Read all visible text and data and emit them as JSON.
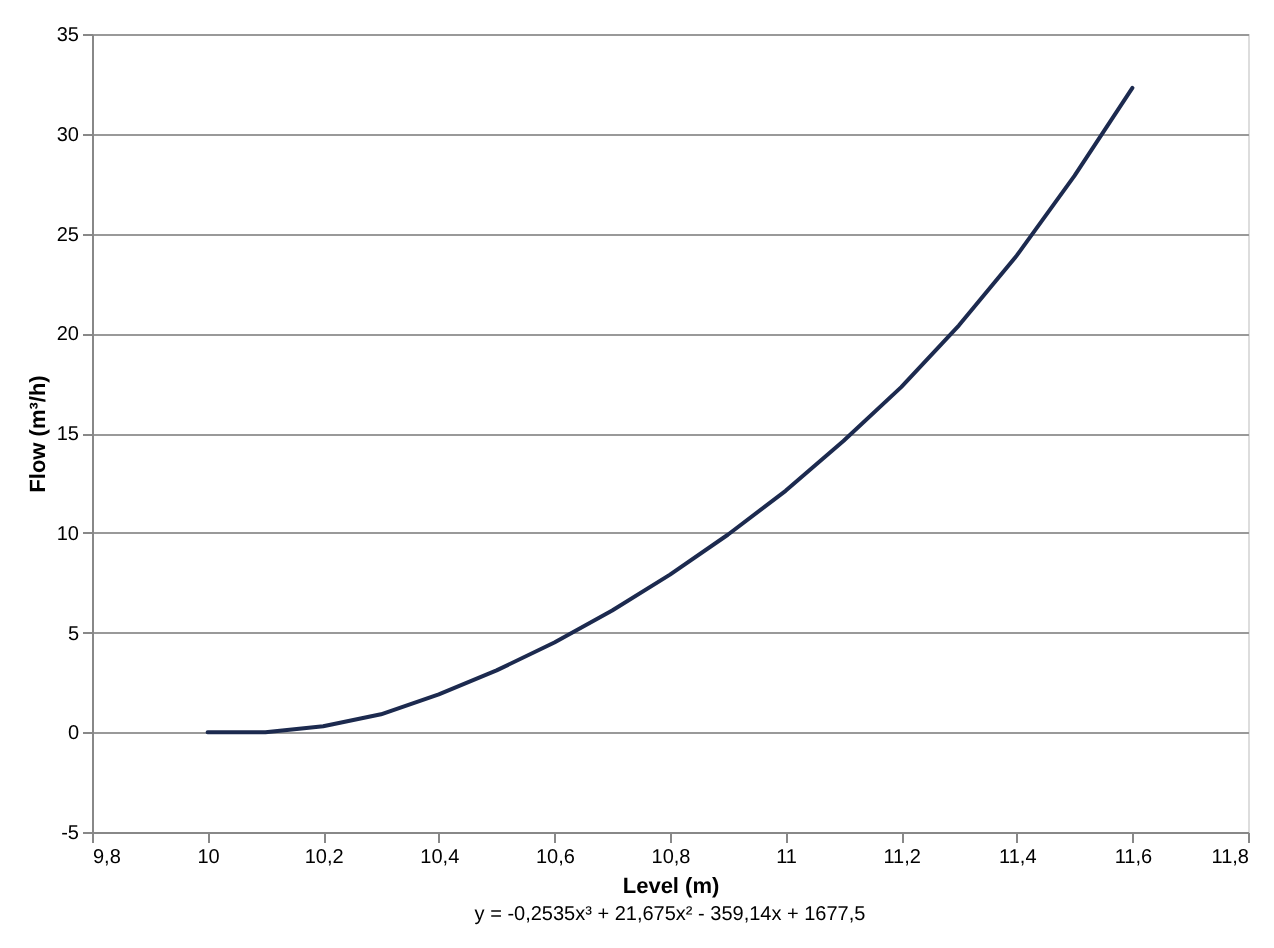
{
  "chart_data": {
    "type": "line",
    "xlabel": "Level (m)",
    "ylabel": "Flow (m³/h)",
    "annotations": [
      "y = -0,2535x³ + 21,675x² - 359,14x + 1677,5"
    ],
    "x": [
      10,
      10.1,
      10.2,
      10.3,
      10.4,
      10.5,
      10.6,
      10.7,
      10.8,
      10.9,
      11,
      11.1,
      11.2,
      11.3,
      11.4,
      11.5,
      11.6
    ],
    "series": [
      {
        "color": "#1c2a4f",
        "values": [
          0,
          0,
          0.3,
          0.9,
          1.9,
          3.1,
          4.5,
          6.1,
          7.9,
          9.9,
          12.1,
          14.6,
          17.3,
          20.4,
          23.9,
          27.9,
          32.3
        ]
      }
    ],
    "xlim": [
      9.8,
      11.8
    ],
    "xticks": [
      {
        "value": 9.8,
        "label": "9,8"
      },
      10,
      {
        "value": 10.2,
        "label": "10,2"
      },
      {
        "value": 10.4,
        "label": "10,4"
      },
      {
        "value": 10.6,
        "label": "10,6"
      },
      {
        "value": 10.8,
        "label": "10,8"
      },
      11,
      {
        "value": 11.2,
        "label": "11,2"
      },
      {
        "value": 11.4,
        "label": "11,4"
      },
      {
        "value": 11.6,
        "label": "11,6"
      },
      {
        "value": 11.8,
        "label": "11,8"
      }
    ],
    "ylim": [
      -5,
      35
    ],
    "yticks": [
      -5,
      0,
      5,
      10,
      15,
      20,
      25,
      30,
      35
    ],
    "grid": "y",
    "marker": "none",
    "line_style": "solid"
  }
}
